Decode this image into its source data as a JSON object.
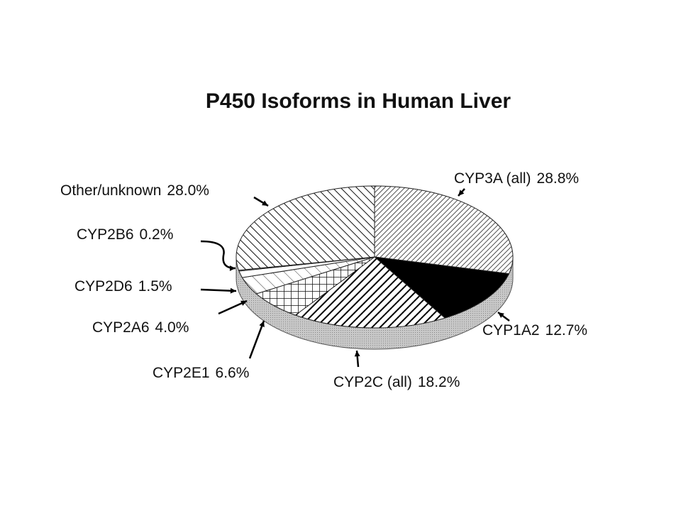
{
  "chart_data": {
    "type": "pie",
    "title": "P450 Isoforms in Human Liver",
    "categories": [
      "CYP3A (all)",
      "CYP1A2",
      "CYP2C (all)",
      "CYP2E1",
      "CYP2A6",
      "CYP2D6",
      "CYP2B6",
      "Other/unknown"
    ],
    "values": [
      28.8,
      12.7,
      18.2,
      6.6,
      4.0,
      1.5,
      0.2,
      28.0
    ],
    "value_labels": [
      "28.8%",
      "12.7%",
      "18.2%",
      "6.6%",
      "4.0%",
      "1.5%",
      "0.2%",
      "28.0%"
    ]
  }
}
